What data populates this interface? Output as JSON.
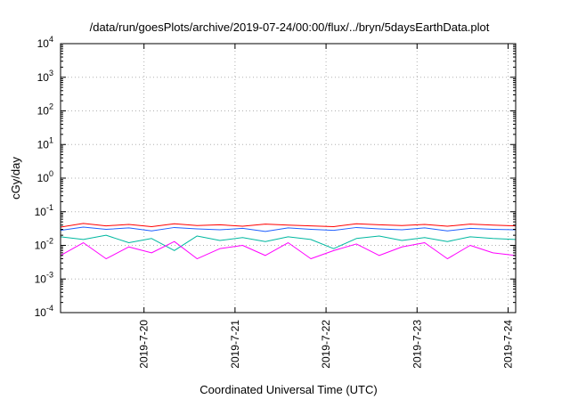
{
  "chart_data": {
    "type": "line",
    "title": "/data/run/goesPlots/archive/2019-07-24/00:00/flux/../bryn/5daysEarthData.plot",
    "xlabel": "Coordinated Universal Time (UTC)",
    "ylabel": "cGy/day",
    "yscale": "log",
    "ylim": [
      0.0001,
      10000
    ],
    "xlim": [
      "2019-07-19 02:00",
      "2019-07-24 02:00"
    ],
    "grid": true,
    "legend": "none",
    "x_ticks": [
      {
        "date": "2019-07-20",
        "label": "2019-7-20"
      },
      {
        "date": "2019-07-21",
        "label": "2019-7-21"
      },
      {
        "date": "2019-07-22",
        "label": "2019-7-22"
      },
      {
        "date": "2019-07-23",
        "label": "2019-7-23"
      },
      {
        "date": "2019-07-24",
        "label": "2019-7-24"
      }
    ],
    "y_ticks": [
      {
        "value": 0.0001,
        "base": "10",
        "exp": "-4"
      },
      {
        "value": 0.001,
        "base": "10",
        "exp": "-3"
      },
      {
        "value": 0.01,
        "base": "10",
        "exp": "-2"
      },
      {
        "value": 0.1,
        "base": "10",
        "exp": "-1"
      },
      {
        "value": 1,
        "base": "10",
        "exp": "0"
      },
      {
        "value": 10,
        "base": "10",
        "exp": "1"
      },
      {
        "value": 100,
        "base": "10",
        "exp": "2"
      },
      {
        "value": 1000,
        "base": "10",
        "exp": "3"
      },
      {
        "value": 10000,
        "base": "10",
        "exp": "4"
      }
    ],
    "series": [
      {
        "color": "#ff0000",
        "x": [
          "2019-07-19 02:00",
          "2019-07-19 08:00",
          "2019-07-19 14:00",
          "2019-07-19 20:00",
          "2019-07-20 02:00",
          "2019-07-20 08:00",
          "2019-07-20 14:00",
          "2019-07-20 20:00",
          "2019-07-21 02:00",
          "2019-07-21 08:00",
          "2019-07-21 14:00",
          "2019-07-21 20:00",
          "2019-07-22 02:00",
          "2019-07-22 08:00",
          "2019-07-22 14:00",
          "2019-07-22 20:00",
          "2019-07-23 02:00",
          "2019-07-23 08:00",
          "2019-07-23 14:00",
          "2019-07-23 20:00",
          "2019-07-24 02:00"
        ],
        "y": [
          0.035,
          0.045,
          0.038,
          0.042,
          0.036,
          0.044,
          0.039,
          0.041,
          0.037,
          0.043,
          0.04,
          0.038,
          0.036,
          0.044,
          0.041,
          0.039,
          0.042,
          0.037,
          0.043,
          0.04,
          0.038
        ]
      },
      {
        "color": "#00b8a0",
        "x": [
          "2019-07-19 02:00",
          "2019-07-19 08:00",
          "2019-07-19 14:00",
          "2019-07-19 20:00",
          "2019-07-20 02:00",
          "2019-07-20 08:00",
          "2019-07-20 14:00",
          "2019-07-20 20:00",
          "2019-07-21 02:00",
          "2019-07-21 08:00",
          "2019-07-21 14:00",
          "2019-07-21 20:00",
          "2019-07-22 02:00",
          "2019-07-22 08:00",
          "2019-07-22 14:00",
          "2019-07-22 20:00",
          "2019-07-23 02:00",
          "2019-07-23 08:00",
          "2019-07-23 14:00",
          "2019-07-23 20:00",
          "2019-07-24 02:00"
        ],
        "y": [
          0.018,
          0.015,
          0.02,
          0.012,
          0.016,
          0.007,
          0.019,
          0.014,
          0.017,
          0.013,
          0.018,
          0.015,
          0.008,
          0.016,
          0.019,
          0.014,
          0.017,
          0.013,
          0.018,
          0.016,
          0.015
        ]
      },
      {
        "color": "#2060ff",
        "x": [
          "2019-07-19 02:00",
          "2019-07-19 08:00",
          "2019-07-19 14:00",
          "2019-07-19 20:00",
          "2019-07-20 02:00",
          "2019-07-20 08:00",
          "2019-07-20 14:00",
          "2019-07-20 20:00",
          "2019-07-21 02:00",
          "2019-07-21 08:00",
          "2019-07-21 14:00",
          "2019-07-21 20:00",
          "2019-07-22 02:00",
          "2019-07-22 08:00",
          "2019-07-22 14:00",
          "2019-07-22 20:00",
          "2019-07-23 02:00",
          "2019-07-23 08:00",
          "2019-07-23 14:00",
          "2019-07-23 20:00",
          "2019-07-24 02:00"
        ],
        "y": [
          0.028,
          0.035,
          0.03,
          0.033,
          0.027,
          0.034,
          0.031,
          0.029,
          0.032,
          0.026,
          0.033,
          0.03,
          0.028,
          0.034,
          0.031,
          0.029,
          0.033,
          0.027,
          0.032,
          0.03,
          0.029
        ]
      },
      {
        "color": "#ff00ff",
        "x": [
          "2019-07-19 02:00",
          "2019-07-19 08:00",
          "2019-07-19 14:00",
          "2019-07-19 20:00",
          "2019-07-20 02:00",
          "2019-07-20 08:00",
          "2019-07-20 14:00",
          "2019-07-20 20:00",
          "2019-07-21 02:00",
          "2019-07-21 08:00",
          "2019-07-21 14:00",
          "2019-07-21 20:00",
          "2019-07-22 02:00",
          "2019-07-22 08:00",
          "2019-07-22 14:00",
          "2019-07-22 20:00",
          "2019-07-23 02:00",
          "2019-07-23 08:00",
          "2019-07-23 14:00",
          "2019-07-23 20:00",
          "2019-07-24 02:00"
        ],
        "y": [
          0.005,
          0.012,
          0.004,
          0.009,
          0.006,
          0.013,
          0.004,
          0.008,
          0.01,
          0.005,
          0.012,
          0.004,
          0.007,
          0.011,
          0.005,
          0.009,
          0.012,
          0.004,
          0.01,
          0.006,
          0.005
        ]
      }
    ]
  }
}
